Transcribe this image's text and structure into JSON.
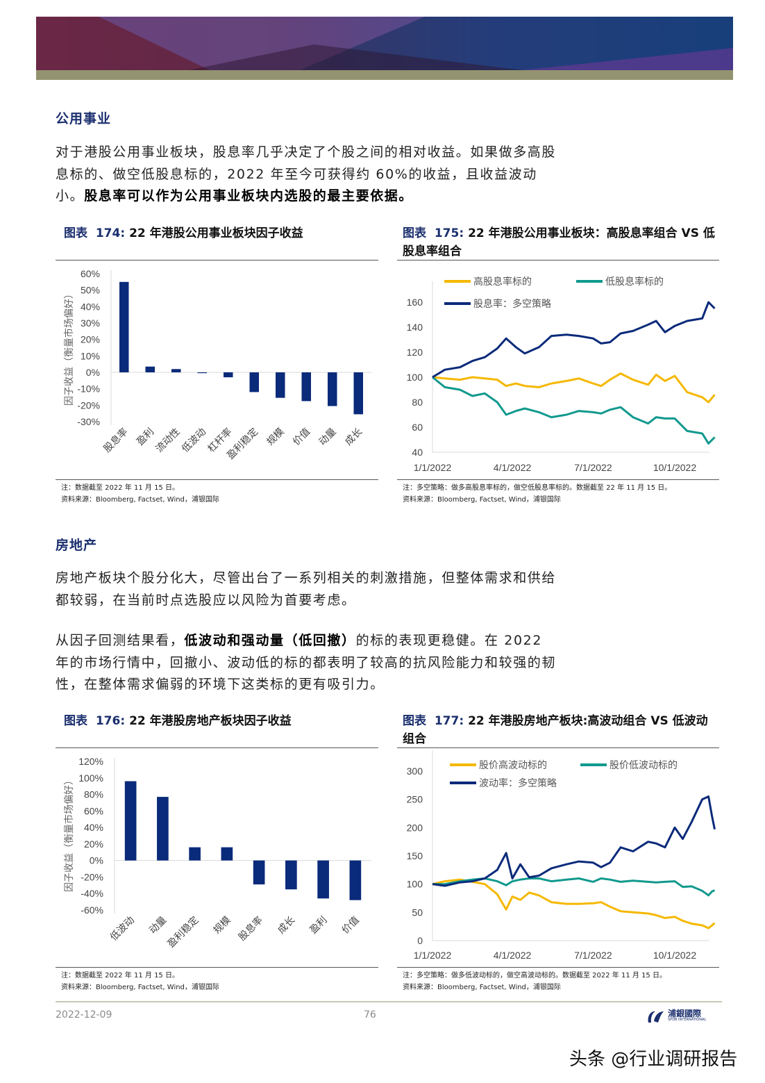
{
  "section1": {
    "heading": "公用事业",
    "paragraph": [
      {
        "text": "对于港股公用事业板块，股息率几乎决定了个股之间的相对收益。如果做多高股息标的、做空低股息标的，2022 年至今可获得约 60%的收益，且收益波动小。",
        "bold": false
      },
      {
        "text": "股息率可以作为公用事业板块内选股的最主要依据。",
        "bold": true
      }
    ]
  },
  "section2": {
    "heading": "房地产",
    "paragraph1": "房地产板块个股分化大，尽管出台了一系列相关的刺激措施，但整体需求和供给都较弱，在当前时点选股应以风险为首要考虑。",
    "paragraph2": [
      {
        "text": "从因子回测结果看，",
        "bold": false
      },
      {
        "text": "低波动和强动量（低回撤）",
        "bold": true
      },
      {
        "text": "的标的表现更稳健。在 2022 年的市场行情中，回撤小、波动低的标的都表明了较高的抗风险能力和较强的韧性，在整体需求偏弱的环境下这类标的更有吸引力。",
        "bold": false
      }
    ]
  },
  "figures": [
    {
      "label": "图表",
      "number": "174:",
      "title": "22 年港股公用事业板块因子收益",
      "note": "注：数据截至 2022 年 11 月 15 日。",
      "source": "资料来源：Bloomberg, Factset, Wind，浦银国际"
    },
    {
      "label": "图表",
      "number": "175:",
      "title": "22 年港股公用事业板块：高股息率组合 VS 低股息率组合",
      "note": "注：多空策略：做多高股息率标的，做空低股息率标的。数据截至 22 年 11 月 15 日。",
      "source": "资料来源：Bloomberg, Factset, Wind，浦银国际"
    },
    {
      "label": "图表",
      "number": "176:",
      "title": "22 年港股房地产板块因子收益",
      "note": "注：数据截至 2022 年 11 月 15 日。",
      "source": "资料来源：Bloomberg, Factset, Wind，浦银国际"
    },
    {
      "label": "图表",
      "number": "177:",
      "title": "22 年港股房地产板块:高波动组合 VS 低波动组合",
      "note": "注：多空策略：做多低波动标的，做空高波动标的。数据截至 2022 年 11 月 15 日。",
      "source": "资料来源：Bloomberg, Factset, Wind，浦银国际"
    }
  ],
  "chart_data": [
    {
      "type": "bar",
      "ylabel": "因子收益（衡量市场偏好）",
      "categories": [
        "股息率",
        "盈利",
        "流动性",
        "低波动",
        "杠杆率",
        "盈利稳定",
        "规模",
        "价值",
        "动量",
        "成长"
      ],
      "values": [
        55,
        3.5,
        2,
        -0.5,
        -3,
        -12,
        -15.5,
        -17.5,
        -20.5,
        -25.5
      ],
      "ylim": [
        -30,
        60
      ],
      "yticks": [
        "60%",
        "50%",
        "40%",
        "30%",
        "20%",
        "10%",
        "0%",
        "-10%",
        "-20%",
        "-30%"
      ],
      "color": "#0a2a7a",
      "grid": false
    },
    {
      "type": "line",
      "xticks": [
        "1/1/2022",
        "4/1/2022",
        "7/1/2022",
        "10/1/2022"
      ],
      "ylim": [
        40,
        160
      ],
      "yticks": [
        "160",
        "140",
        "120",
        "100",
        "80",
        "60",
        "40"
      ],
      "legend": "top",
      "grid": false,
      "x": [
        "2022-01-01",
        "2022-01-15",
        "2022-02-01",
        "2022-02-15",
        "2022-03-01",
        "2022-03-15",
        "2022-03-25",
        "2022-04-05",
        "2022-04-15",
        "2022-05-01",
        "2022-05-15",
        "2022-06-01",
        "2022-06-15",
        "2022-07-01",
        "2022-07-10",
        "2022-07-20",
        "2022-08-01",
        "2022-08-15",
        "2022-09-01",
        "2022-09-10",
        "2022-09-20",
        "2022-10-01",
        "2022-10-15",
        "2022-11-01",
        "2022-11-08",
        "2022-11-15"
      ],
      "series": [
        {
          "name": "高股息率标的",
          "color": "#f5b800",
          "values": [
            100,
            99,
            98,
            100,
            99,
            98,
            93,
            95,
            93,
            92,
            95,
            97,
            99,
            95,
            93,
            98,
            103,
            98,
            94,
            102,
            97,
            101,
            88,
            84,
            80,
            86
          ]
        },
        {
          "name": "低股息率标的",
          "color": "#11998e",
          "values": [
            100,
            92,
            90,
            85,
            87,
            80,
            70,
            73,
            75,
            72,
            68,
            70,
            73,
            72,
            71,
            74,
            76,
            68,
            63,
            68,
            67,
            67,
            57,
            55,
            47,
            52
          ]
        },
        {
          "name": "股息率：多空策略",
          "color": "#0a2a7a",
          "values": [
            100,
            106,
            108,
            113,
            116,
            123,
            131,
            124,
            119,
            124,
            133,
            134,
            133,
            131,
            127,
            128,
            135,
            137,
            142,
            145,
            136,
            141,
            145,
            147,
            160,
            155
          ]
        }
      ]
    },
    {
      "type": "bar",
      "ylabel": "因子收益（衡量市场偏好）",
      "categories": [
        "低波动",
        "动量",
        "盈利稳定",
        "规模",
        "股息率",
        "成长",
        "盈利",
        "价值"
      ],
      "values": [
        96,
        77,
        16,
        16,
        -29,
        -35,
        -46,
        -48
      ],
      "ylim": [
        -60,
        120
      ],
      "yticks": [
        "120%",
        "100%",
        "80%",
        "60%",
        "40%",
        "20%",
        "0%",
        "-20%",
        "-40%",
        "-60%"
      ],
      "color": "#0a2a7a",
      "grid": false
    },
    {
      "type": "line",
      "xticks": [
        "1/1/2022",
        "4/1/2022",
        "7/1/2022",
        "10/1/2022"
      ],
      "ylim": [
        0,
        300
      ],
      "yticks": [
        "300",
        "250",
        "200",
        "150",
        "100",
        "50",
        "0"
      ],
      "legend": "top",
      "grid": false,
      "x": [
        "2022-01-01",
        "2022-01-15",
        "2022-02-01",
        "2022-02-15",
        "2022-03-01",
        "2022-03-15",
        "2022-03-25",
        "2022-04-01",
        "2022-04-10",
        "2022-04-20",
        "2022-05-01",
        "2022-05-15",
        "2022-06-01",
        "2022-06-15",
        "2022-07-01",
        "2022-07-10",
        "2022-07-20",
        "2022-08-01",
        "2022-08-15",
        "2022-09-01",
        "2022-09-10",
        "2022-09-20",
        "2022-10-01",
        "2022-10-10",
        "2022-10-20",
        "2022-11-01",
        "2022-11-08",
        "2022-11-12",
        "2022-11-15"
      ],
      "series": [
        {
          "name": "股价高波动标的",
          "color": "#f5b800",
          "values": [
            100,
            105,
            108,
            104,
            100,
            82,
            55,
            78,
            72,
            85,
            80,
            68,
            65,
            65,
            66,
            68,
            60,
            52,
            50,
            48,
            45,
            40,
            42,
            35,
            30,
            27,
            22,
            27,
            31
          ]
        },
        {
          "name": "股价低波动标的",
          "color": "#11998e",
          "values": [
            100,
            100,
            105,
            108,
            110,
            105,
            98,
            105,
            108,
            110,
            110,
            105,
            108,
            110,
            104,
            110,
            108,
            104,
            106,
            104,
            103,
            104,
            105,
            95,
            96,
            88,
            80,
            87,
            89
          ]
        },
        {
          "name": "波动率：多空策略",
          "color": "#0a2a7a",
          "values": [
            100,
            97,
            103,
            105,
            110,
            125,
            155,
            110,
            135,
            112,
            115,
            128,
            135,
            140,
            138,
            130,
            138,
            165,
            158,
            175,
            172,
            165,
            200,
            180,
            210,
            250,
            255,
            220,
            197
          ]
        }
      ]
    }
  ],
  "footer": {
    "date": "2022-12-09",
    "page": "76",
    "logo_text": "浦銀國際",
    "logo_subtext": "SPDB INTERNATIONAL"
  },
  "watermark": "头条 @行业调研报告"
}
